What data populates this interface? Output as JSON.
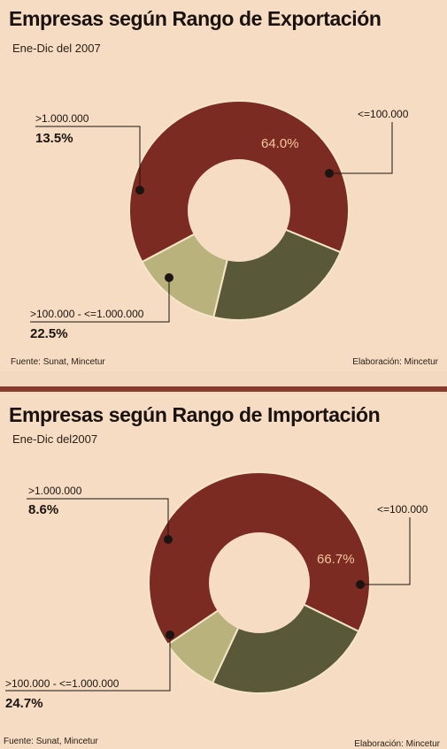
{
  "chart_data": [
    {
      "type": "pie",
      "title": "Empresas según Rango de Exportación",
      "subtitle": "Ene-Dic del 2007",
      "categories": [
        "<=100.000",
        ">100.000 - <=1.000.000",
        ">1.000.000"
      ],
      "values": [
        64.0,
        22.5,
        13.5
      ],
      "labels": [
        "64.0%",
        "22.5%",
        "13.5%"
      ],
      "colors": [
        "#7b2b22",
        "#595839",
        "#b9b27c"
      ],
      "source": "Fuente: Sunat, Mincetur",
      "credit": "Elaboración: Mincetur"
    },
    {
      "type": "pie",
      "title": "Empresas según Rango de Importación",
      "subtitle": "Ene-Dic del2007",
      "categories": [
        "<=100.000",
        ">100.000 - <=1.000.000",
        ">1.000.000"
      ],
      "values": [
        66.7,
        24.7,
        8.6
      ],
      "labels": [
        "66.7%",
        "24.7%",
        "8.6%"
      ],
      "colors": [
        "#7b2b22",
        "#595839",
        "#b9b27c"
      ],
      "source": "Fuente: Sunat, Mincetur",
      "credit": "Elaboración: Mincetur"
    }
  ]
}
